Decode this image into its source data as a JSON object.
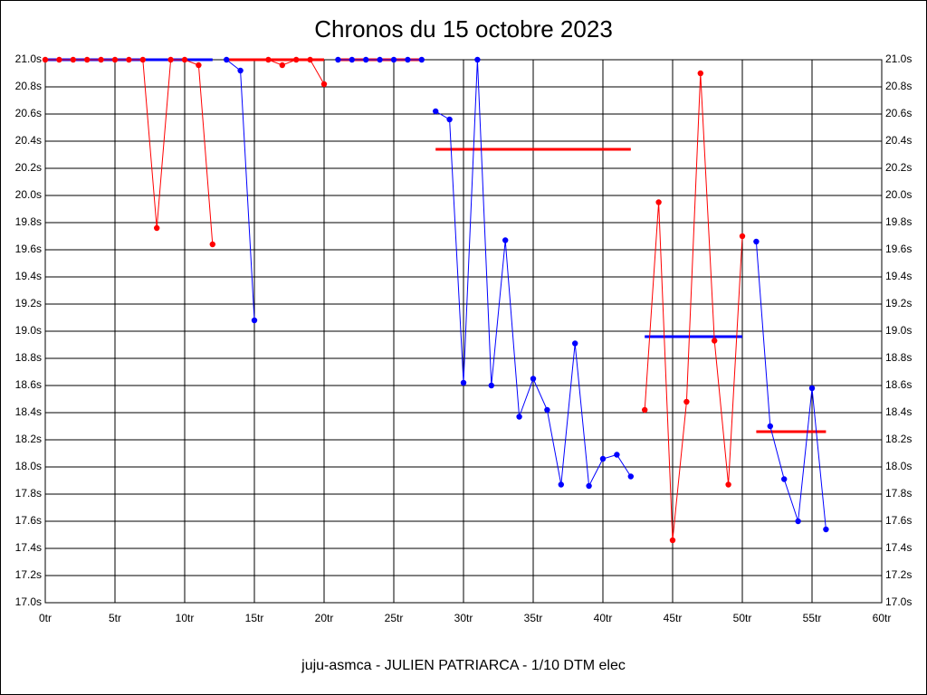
{
  "chart_data": {
    "type": "line",
    "title": "Chronos du 15 octobre 2023",
    "footer": "juju-asmca - JULIEN PATRIARCA - 1/10 DTM elec",
    "grid": true,
    "xlim": [
      0,
      60
    ],
    "xticks": [
      {
        "value": 0,
        "label": "0tr"
      },
      {
        "value": 5,
        "label": "5tr"
      },
      {
        "value": 10,
        "label": "10tr"
      },
      {
        "value": 15,
        "label": "15tr"
      },
      {
        "value": 20,
        "label": "20tr"
      },
      {
        "value": 25,
        "label": "25tr"
      },
      {
        "value": 30,
        "label": "30tr"
      },
      {
        "value": 35,
        "label": "35tr"
      },
      {
        "value": 40,
        "label": "40tr"
      },
      {
        "value": 45,
        "label": "45tr"
      },
      {
        "value": 50,
        "label": "50tr"
      },
      {
        "value": 55,
        "label": "55tr"
      },
      {
        "value": 60,
        "label": "60tr"
      }
    ],
    "ylim": [
      17.0,
      21.0
    ],
    "yticks": [
      {
        "value": 17.0,
        "label": "17.0s"
      },
      {
        "value": 17.2,
        "label": "17.2s"
      },
      {
        "value": 17.4,
        "label": "17.4s"
      },
      {
        "value": 17.6,
        "label": "17.6s"
      },
      {
        "value": 17.8,
        "label": "17.8s"
      },
      {
        "value": 18.0,
        "label": "18.0s"
      },
      {
        "value": 18.2,
        "label": "18.2s"
      },
      {
        "value": 18.4,
        "label": "18.4s"
      },
      {
        "value": 18.6,
        "label": "18.6s"
      },
      {
        "value": 18.8,
        "label": "18.8s"
      },
      {
        "value": 19.0,
        "label": "19.0s"
      },
      {
        "value": 19.2,
        "label": "19.2s"
      },
      {
        "value": 19.4,
        "label": "19.4s"
      },
      {
        "value": 19.6,
        "label": "19.6s"
      },
      {
        "value": 19.8,
        "label": "19.8s"
      },
      {
        "value": 20.0,
        "label": "20.0s"
      },
      {
        "value": 20.2,
        "label": "20.2s"
      },
      {
        "value": 20.4,
        "label": "20.4s"
      },
      {
        "value": 20.6,
        "label": "20.6s"
      },
      {
        "value": 20.8,
        "label": "20.8s"
      },
      {
        "value": 21.0,
        "label": "21.0s"
      }
    ],
    "series": [
      {
        "color": "#0000ff",
        "markers": false,
        "x": [
          0,
          12
        ],
        "values": [
          21.0,
          21.0
        ]
      },
      {
        "color": "#ff0000",
        "markers": false,
        "x": [
          13,
          20
        ],
        "values": [
          21.0,
          21.0
        ]
      },
      {
        "color": "#ff0000",
        "markers": false,
        "x": [
          21,
          27
        ],
        "values": [
          21.0,
          21.0
        ]
      },
      {
        "color": "#ff0000",
        "markers": false,
        "x": [
          28,
          42
        ],
        "values": [
          20.34,
          20.34
        ]
      },
      {
        "color": "#0000ff",
        "markers": false,
        "x": [
          43,
          50
        ],
        "values": [
          18.96,
          18.96
        ]
      },
      {
        "color": "#ff0000",
        "markers": false,
        "x": [
          51,
          56
        ],
        "values": [
          18.26,
          18.26
        ]
      },
      {
        "color": "#ff0000",
        "markers": true,
        "x": [
          0,
          1,
          2,
          3,
          4,
          5,
          6,
          7,
          8,
          9,
          10,
          11,
          12
        ],
        "values": [
          21.0,
          21.0,
          21.0,
          21.0,
          21.0,
          21.0,
          21.0,
          21.0,
          19.76,
          21.0,
          21.0,
          20.96,
          19.64
        ]
      },
      {
        "color": "#0000ff",
        "markers": true,
        "x": [
          13,
          14,
          15
        ],
        "values": [
          21.0,
          20.92,
          19.08
        ]
      },
      {
        "color": "#ff0000",
        "markers": true,
        "x": [
          16,
          17,
          18,
          19,
          20
        ],
        "values": [
          21.0,
          20.96,
          21.0,
          21.0,
          20.82
        ]
      },
      {
        "color": "#0000ff",
        "markers": true,
        "x": [
          21,
          22,
          23,
          24,
          25,
          26,
          27
        ],
        "values": [
          21.0,
          21.0,
          21.0,
          21.0,
          21.0,
          21.0,
          21.0
        ]
      },
      {
        "color": "#0000ff",
        "markers": true,
        "x": [
          28,
          29,
          30,
          31,
          32,
          33,
          34,
          35,
          36,
          37,
          38,
          39,
          40,
          41,
          42
        ],
        "values": [
          20.62,
          20.56,
          18.62,
          21.0,
          18.6,
          19.67,
          18.37,
          18.65,
          18.42,
          17.87,
          18.91,
          17.86,
          18.06,
          18.09,
          17.93
        ]
      },
      {
        "color": "#ff0000",
        "markers": true,
        "x": [
          43,
          44,
          45,
          46,
          47,
          48,
          49,
          50
        ],
        "values": [
          18.42,
          19.95,
          17.46,
          18.48,
          20.9,
          18.93,
          17.87,
          19.7
        ]
      },
      {
        "color": "#0000ff",
        "markers": true,
        "x": [
          51,
          52,
          53,
          54,
          55,
          56
        ],
        "values": [
          19.66,
          18.3,
          17.91,
          17.6,
          18.58,
          17.54
        ]
      }
    ]
  }
}
